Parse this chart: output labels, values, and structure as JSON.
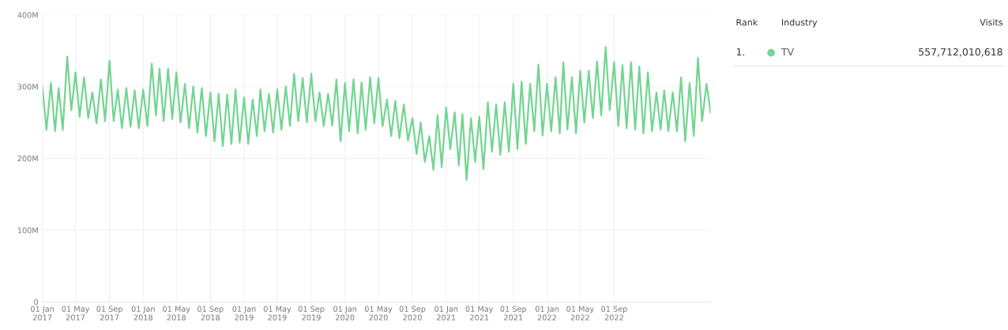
{
  "chart_data": {
    "type": "line",
    "x": [
      "2017-01-01",
      "2017-01-16",
      "2017-02-01",
      "2017-02-16",
      "2017-03-01",
      "2017-03-16",
      "2017-04-01",
      "2017-04-16",
      "2017-05-01",
      "2017-05-16",
      "2017-06-01",
      "2017-06-16",
      "2017-07-01",
      "2017-07-16",
      "2017-08-01",
      "2017-08-16",
      "2017-09-01",
      "2017-09-16",
      "2017-10-01",
      "2017-10-16",
      "2017-11-01",
      "2017-11-16",
      "2017-12-01",
      "2017-12-16",
      "2018-01-01",
      "2018-01-16",
      "2018-02-01",
      "2018-02-16",
      "2018-03-01",
      "2018-03-16",
      "2018-04-01",
      "2018-04-16",
      "2018-05-01",
      "2018-05-16",
      "2018-06-01",
      "2018-06-16",
      "2018-07-01",
      "2018-07-16",
      "2018-08-01",
      "2018-08-16",
      "2018-09-01",
      "2018-09-16",
      "2018-10-01",
      "2018-10-16",
      "2018-11-01",
      "2018-11-16",
      "2018-12-01",
      "2018-12-16",
      "2019-01-01",
      "2019-01-16",
      "2019-02-01",
      "2019-02-16",
      "2019-03-01",
      "2019-03-16",
      "2019-04-01",
      "2019-04-16",
      "2019-05-01",
      "2019-05-16",
      "2019-06-01",
      "2019-06-16",
      "2019-07-01",
      "2019-07-16",
      "2019-08-01",
      "2019-08-16",
      "2019-09-01",
      "2019-09-16",
      "2019-10-01",
      "2019-10-16",
      "2019-11-01",
      "2019-11-16",
      "2019-12-01",
      "2019-12-16",
      "2020-01-01",
      "2020-01-16",
      "2020-02-01",
      "2020-02-16",
      "2020-03-01",
      "2020-03-16",
      "2020-04-01",
      "2020-04-16",
      "2020-05-01",
      "2020-05-16",
      "2020-06-01",
      "2020-06-16",
      "2020-07-01",
      "2020-07-16",
      "2020-08-01",
      "2020-08-16",
      "2020-09-01",
      "2020-09-16",
      "2020-10-01",
      "2020-10-16",
      "2020-11-01",
      "2020-11-16",
      "2020-12-01",
      "2020-12-16",
      "2021-01-01",
      "2021-01-16",
      "2021-02-01",
      "2021-02-16",
      "2021-03-01",
      "2021-03-16",
      "2021-04-01",
      "2021-04-16",
      "2021-05-01",
      "2021-05-16",
      "2021-06-01",
      "2021-06-16",
      "2021-07-01",
      "2021-07-16",
      "2021-08-01",
      "2021-08-16",
      "2021-09-01",
      "2021-09-16",
      "2021-10-01",
      "2021-10-16",
      "2021-11-01",
      "2021-11-16",
      "2021-12-01",
      "2021-12-16",
      "2022-01-01",
      "2022-01-16",
      "2022-02-01",
      "2022-02-16",
      "2022-03-01",
      "2022-03-16",
      "2022-04-01",
      "2022-04-16",
      "2022-05-01",
      "2022-05-16",
      "2022-06-01",
      "2022-06-16",
      "2022-07-01",
      "2022-07-16",
      "2022-08-01",
      "2022-08-16",
      "2022-09-01",
      "2022-09-16",
      "2022-10-01",
      "2022-10-16",
      "2022-11-01",
      "2022-11-16",
      "2022-12-01",
      "2022-12-16",
      "2023-01-01",
      "2023-01-16",
      "2023-02-01",
      "2023-02-16",
      "2023-03-01",
      "2023-03-16",
      "2023-04-01",
      "2023-04-16",
      "2023-05-01",
      "2023-05-16",
      "2023-06-01",
      "2023-06-16",
      "2023-07-01",
      "2023-07-16",
      "2023-08-01",
      "2023-08-16"
    ],
    "series": [
      {
        "name": "TV",
        "color": "#72d591",
        "values": [
          300,
          240,
          305,
          238,
          298,
          240,
          342,
          267,
          320,
          258,
          313,
          256,
          292,
          249,
          310,
          252,
          336,
          252,
          296,
          242,
          298,
          244,
          295,
          242,
          296,
          245,
          332,
          260,
          325,
          252,
          325,
          255,
          320,
          250,
          304,
          242,
          300,
          236,
          298,
          231,
          292,
          224,
          290,
          217,
          289,
          220,
          296,
          222,
          285,
          220,
          282,
          231,
          296,
          238,
          290,
          236,
          296,
          240,
          300,
          245,
          318,
          252,
          312,
          250,
          318,
          252,
          292,
          245,
          290,
          246,
          310,
          224,
          305,
          238,
          310,
          235,
          306,
          240,
          313,
          249,
          312,
          245,
          282,
          231,
          280,
          228,
          275,
          225,
          256,
          206,
          250,
          195,
          231,
          184,
          260,
          188,
          271,
          213,
          264,
          190,
          262,
          170,
          256,
          195,
          258,
          185,
          278,
          209,
          275,
          205,
          278,
          209,
          304,
          213,
          307,
          220,
          304,
          238,
          331,
          232,
          304,
          238,
          313,
          235,
          334,
          240,
          313,
          235,
          322,
          250,
          322,
          256,
          335,
          260,
          355,
          267,
          334,
          245,
          330,
          242,
          334,
          240,
          328,
          235,
          320,
          238,
          292,
          240,
          295,
          238,
          292,
          238,
          313,
          224,
          305,
          231,
          340,
          252,
          304,
          264
        ]
      }
    ],
    "xlim": [
      "2017-01-01",
      "2023-08-16"
    ],
    "xticks": [
      {
        "value": "2017-01-01",
        "label": "01 Jan\n2017"
      },
      {
        "value": "2017-05-01",
        "label": "01 May\n2017"
      },
      {
        "value": "2017-09-01",
        "label": "01 Sep\n2017"
      },
      {
        "value": "2018-01-01",
        "label": "01 Jan\n2018"
      },
      {
        "value": "2018-05-01",
        "label": "01 May\n2018"
      },
      {
        "value": "2018-09-01",
        "label": "01 Sep\n2018"
      },
      {
        "value": "2019-01-01",
        "label": "01 Jan\n2019"
      },
      {
        "value": "2019-05-01",
        "label": "01 May\n2019"
      },
      {
        "value": "2019-09-01",
        "label": "01 Sep\n2019"
      },
      {
        "value": "2020-01-01",
        "label": "01 Jan\n2020"
      },
      {
        "value": "2020-05-01",
        "label": "01 May\n2020"
      },
      {
        "value": "2020-09-01",
        "label": "01 Sep\n2020"
      },
      {
        "value": "2021-01-01",
        "label": "01 Jan\n2021"
      },
      {
        "value": "2021-05-01",
        "label": "01 May\n2021"
      },
      {
        "value": "2021-09-01",
        "label": "01 Sep\n2021"
      },
      {
        "value": "2022-01-01",
        "label": "01 Jan\n2022"
      },
      {
        "value": "2022-05-01",
        "label": "01 May\n2022"
      },
      {
        "value": "2022-09-01",
        "label": "01 Sep\n2022"
      }
    ],
    "ylim": [
      0,
      400
    ],
    "yticks": [
      0,
      {
        "value": 100,
        "label": "100M"
      },
      {
        "value": 200,
        "label": "200M"
      },
      {
        "value": 300,
        "label": "300M"
      },
      {
        "value": 400,
        "label": "400M"
      }
    ],
    "grid": true,
    "legend": "top right",
    "annotations": [
      "Rank",
      "Industry",
      "Visits",
      "1.",
      "557,712,010,618"
    ]
  }
}
